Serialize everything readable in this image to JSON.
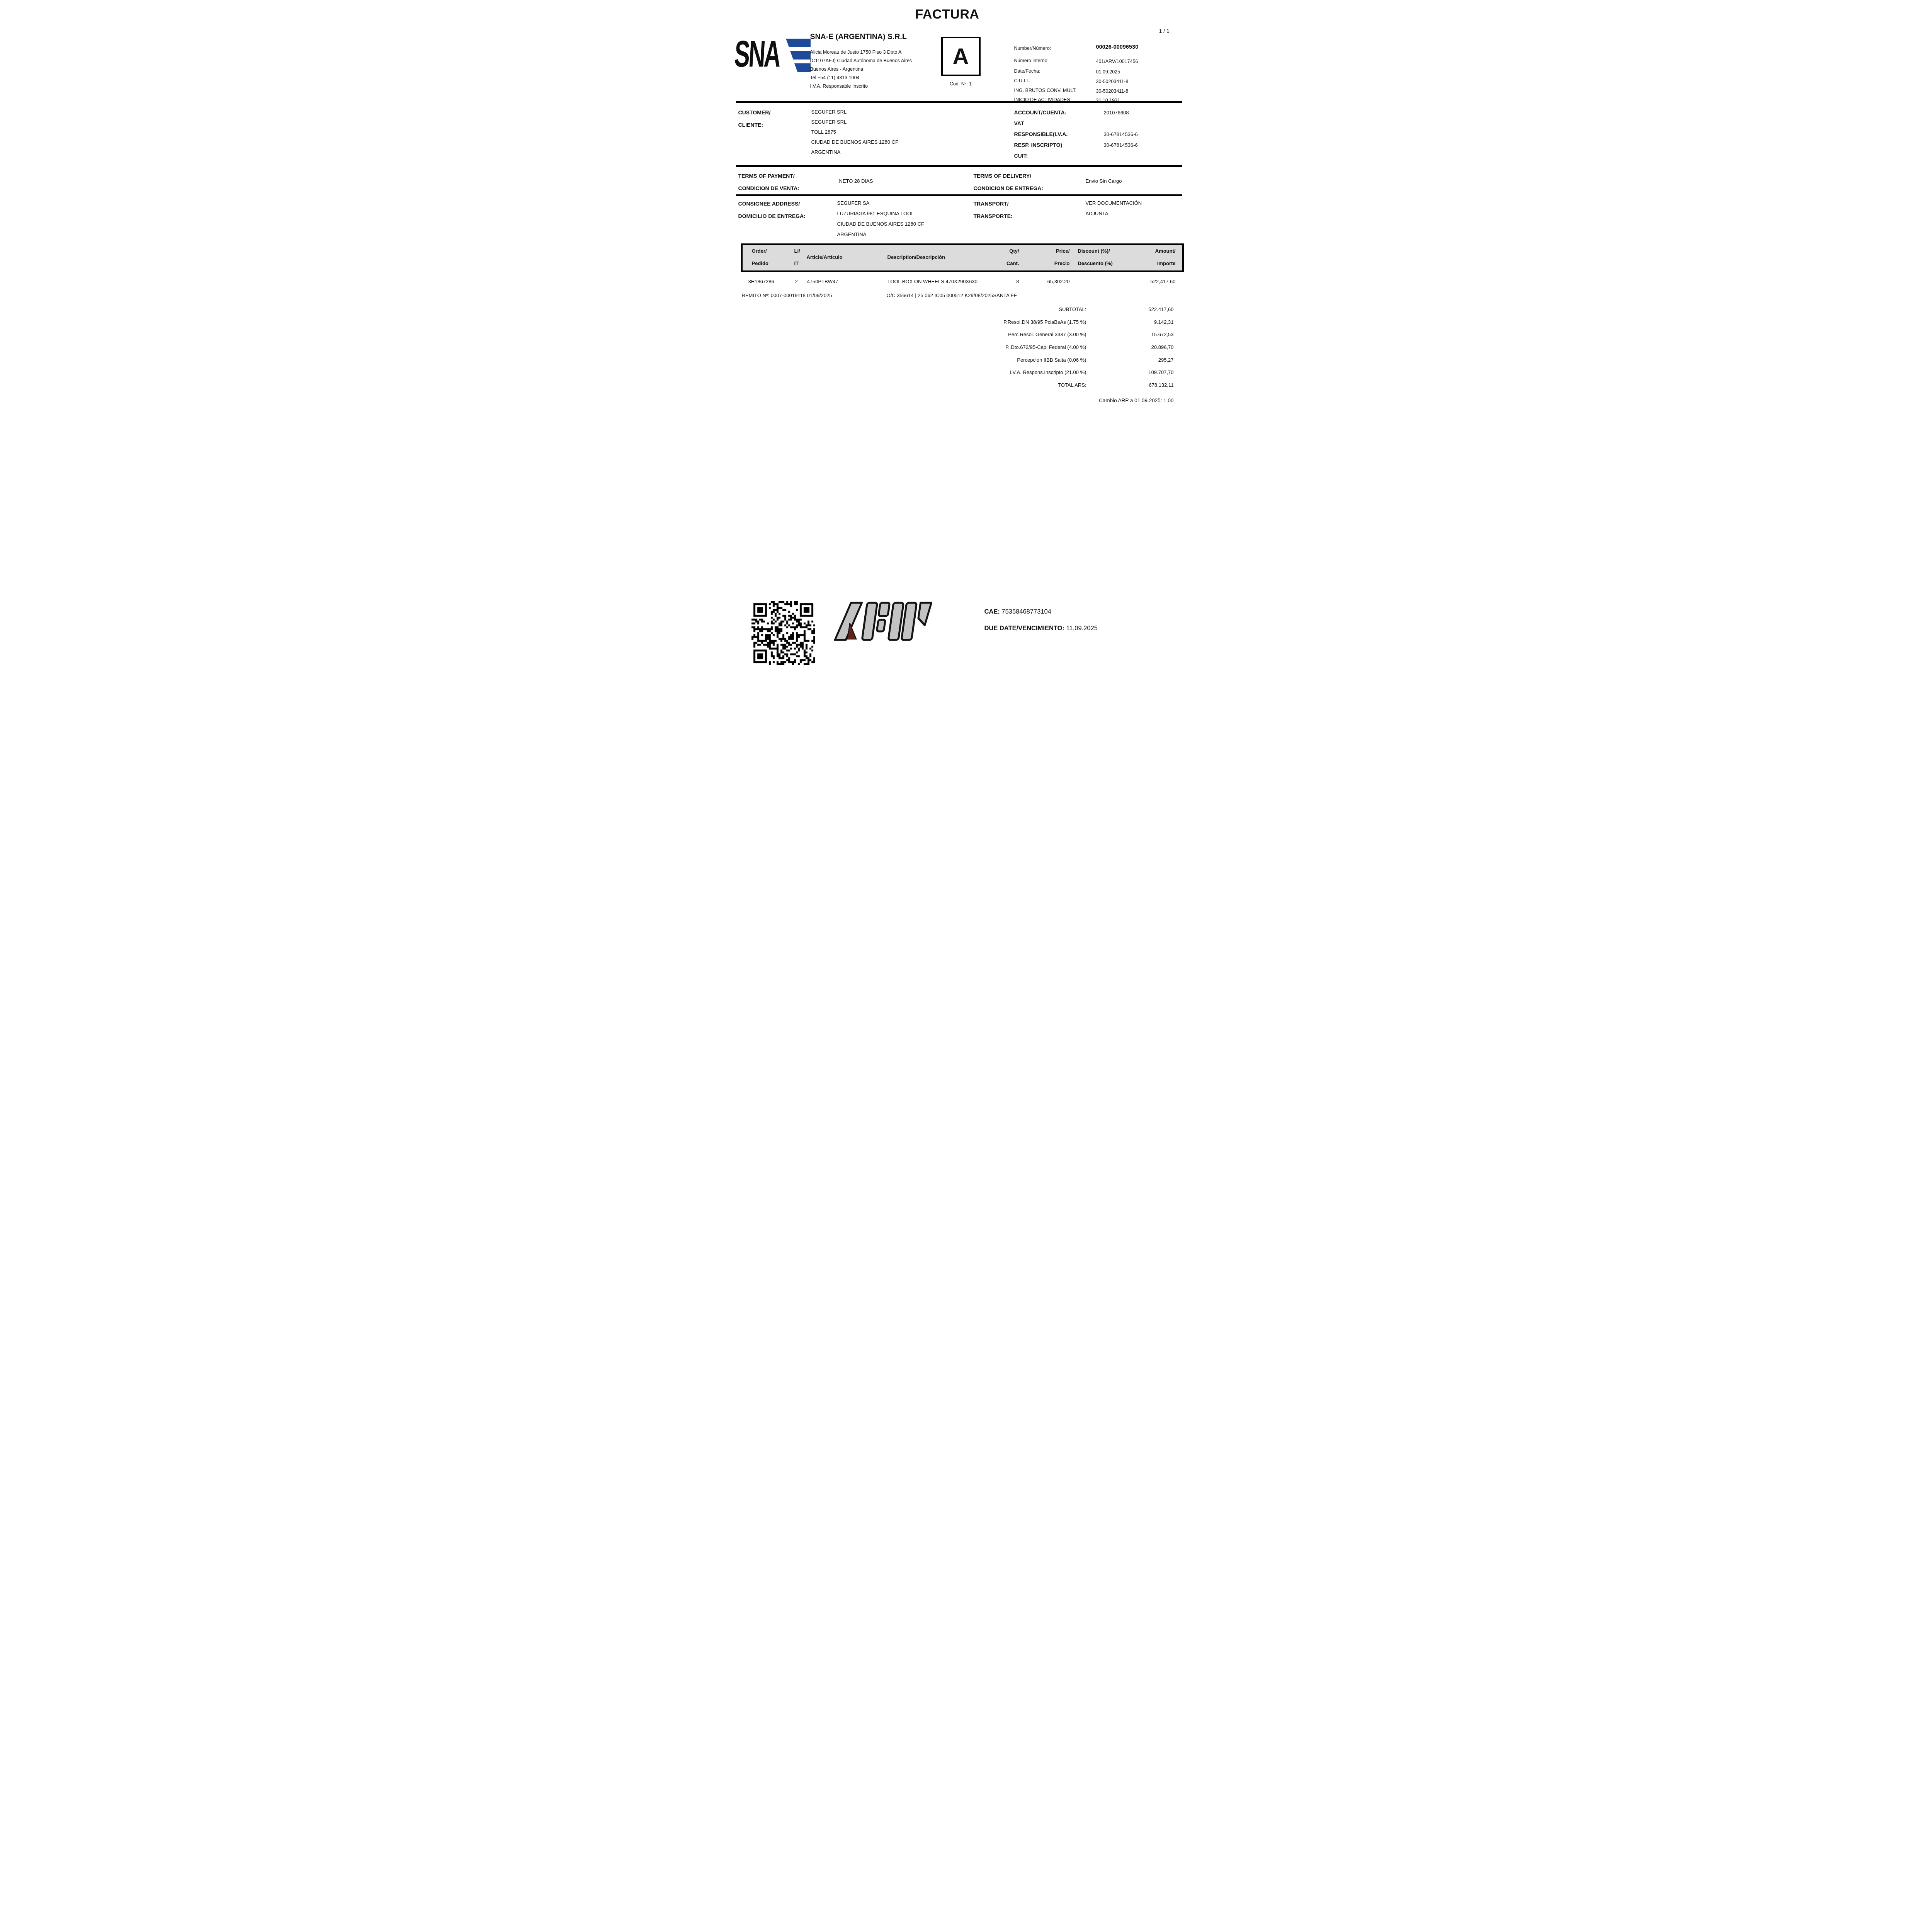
{
  "page": {
    "number": "1 / 1"
  },
  "header": {
    "title": "FACTURA"
  },
  "doc_type": {
    "letter": "A",
    "code": "Cod. Nº: 1"
  },
  "company": {
    "logo_text": "SNA",
    "name": "SNA-E (ARGENTINA) S.R.L",
    "address_lines": [
      "Alicia Moreau de Justo 1750 Piso 3 Dpto A",
      "(C1107AFJ) Ciudad Autónoma de Buenos Aires",
      "Buenos Aires - Argentina",
      "Tel +54 (11) 4313 1004",
      "I.V.A. Responsable Inscrito"
    ]
  },
  "invoice_meta": {
    "rows": [
      {
        "label": "Number/Número:",
        "value": "00026-00096530"
      },
      {
        "label": "Número interno:",
        "value": "401/ARV/10017456"
      },
      {
        "label": "Date/Fecha:",
        "value": "01.09.2025"
      },
      {
        "label": "C.U.I.T.",
        "value": "30-50203411-8"
      },
      {
        "label": "ING. BRUTOS CONV. MULT.",
        "value": "30-50203411-8"
      },
      {
        "label": "INICIO DE ACTIVIDADES",
        "value": "31.10.1931"
      }
    ]
  },
  "customer": {
    "label1": "CUSTOMER/",
    "label2": "CLIENTE:",
    "lines": [
      "SEGUFER SRL",
      "SEGUFER SRL",
      "TOLL 2875",
      "CIUDAD DE BUENOS AIRES 1280 CF",
      "ARGENTINA"
    ]
  },
  "account": {
    "label": "ACCOUNT/CUENTA:",
    "value": "201076608",
    "vat_label1": "VAT",
    "vat_label2": "RESPONSIBLE(I.V.A.",
    "vat_label3": "RESP. INSCRIPTO)",
    "vat_label4": "CUIT:",
    "vat_value1": "30-67814536-6",
    "vat_value2": "30-67814536-6"
  },
  "payment": {
    "label1": "TERMS OF PAYMENT/",
    "label2": "CONDICION DE VENTA:",
    "value": "NETO 28 DIAS"
  },
  "delivery": {
    "label1": "TERMS OF DELIVERY/",
    "label2": "CONDICION DE ENTREGA:",
    "value": "Envio Sin Cargo"
  },
  "consignee": {
    "label1": "CONSIGNEE ADDRESS/",
    "label2": "DOMICILIO DE ENTREGA:",
    "lines": [
      "SEGUFER SA",
      "LUZURIAGA 981 ESQUINA TOOL",
      "CIUDAD DE BUENOS AIRES 1280 CF",
      "ARGENTINA"
    ]
  },
  "transport": {
    "label1": "TRANSPORT/",
    "label2": "TRANSPORTE:",
    "line1": "VER DOCUMENTACIÓN",
    "line2": "ADJUNTA"
  },
  "table": {
    "headers": {
      "order_l1": "Order/",
      "order_l2": "Pedido",
      "li_l1": "Li/",
      "li_l2": "IT",
      "article": "Article/Artículo",
      "description": "Description/Descripción",
      "qty_l1": "Qty/",
      "qty_l2": "Cant.",
      "price_l1": "Price/",
      "price_l2": "Precio",
      "discount_l1": "Discount (%)/",
      "discount_l2": "Descuento (%)",
      "amount_l1": "Amount/",
      "amount_l2": "Importe"
    },
    "line": {
      "order": "3H1867286",
      "li": "2",
      "article": "4750PTBW47",
      "description": "TOOL BOX ON WHEELS 470X290X630",
      "qty": "8",
      "price": "65,302.20",
      "discount": "",
      "amount": "522,417.60"
    },
    "refs": {
      "remito": "REMITO Nº: 0007-00019118 01/09/2025",
      "oc": "O/C 356614 |  25 062 IC05 000512 K29/08/2025SANTA FE"
    }
  },
  "totals": {
    "rows": [
      {
        "label": "SUBTOTAL:",
        "value": "522.417,60"
      },
      {
        "label": "P.Resol.DN 38/95 PciaBsAs (1.75 %)",
        "value": "9.142,31"
      },
      {
        "label": "Perc.Resol. General 3337 (3.00 %)",
        "value": "15.672,53"
      },
      {
        "label": "P..Dto.672/95-Capi Federal (4.00 %)",
        "value": "20.896,70"
      },
      {
        "label": "Percepcion IIBB Salta (0.06 %)",
        "value": "295,27"
      },
      {
        "label": "I.V.A. Respons.Inscripto (21.00 %)",
        "value": "109.707,70"
      },
      {
        "label": "TOTAL ARS:",
        "value": "678.132,11"
      }
    ],
    "exchange_note": "Cambio ARP a 01.09.2025: 1.00"
  },
  "footer": {
    "cae_label": "CAE:",
    "cae_value": " 75358468773104",
    "due_label": "DUE DATE/VENCIMIENTO:",
    "due_value": " 11.09.2025"
  },
  "colors": {
    "logo_blue": "#1d4b99",
    "afip_gray": "#c3c3c3",
    "afip_red": "#5f2318",
    "table_header_bg": "#dcdcdc"
  }
}
